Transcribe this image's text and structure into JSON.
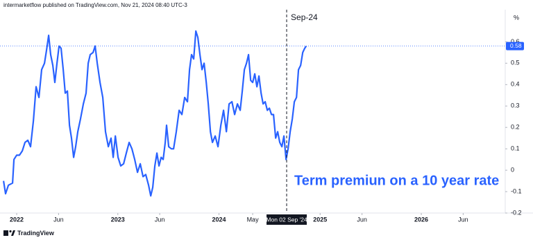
{
  "header": "intermarketflow published on TradingView.com, Nov 21, 2024 08:40 UTC-3",
  "footer": "TradingView",
  "chart_data": {
    "type": "line",
    "unit": "%",
    "annotation": "Term premiun on a 10 year rate",
    "crosshair": {
      "x": 2024.669,
      "label": "Mon 02 Sep '24",
      "tag": "Sep-24"
    },
    "xlim": [
      2021.835,
      2026.83
    ],
    "xticks": [
      2022,
      {
        "value": 2022.414,
        "label": "Jun"
      },
      2023,
      {
        "value": 2023.414,
        "label": "Jun"
      },
      2024,
      {
        "value": 2024.333,
        "label": "May"
      },
      2025,
      {
        "value": 2025.414,
        "label": "Jun"
      },
      2026,
      {
        "value": 2026.414,
        "label": "Jun"
      }
    ],
    "ylim": [
      -0.2,
      0.75
    ],
    "yticks": [
      -0.2,
      -0.1,
      0,
      0.1,
      0.2,
      0.3,
      0.4,
      0.5,
      0.6
    ],
    "x": [
      2021.87,
      2021.89,
      2021.918,
      2021.959,
      2021.973,
      2022.0,
      2022.027,
      2022.055,
      2022.082,
      2022.11,
      2022.137,
      2022.165,
      2022.192,
      2022.22,
      2022.247,
      2022.275,
      2022.295,
      2022.316,
      2022.336,
      2022.357,
      2022.377,
      2022.398,
      2022.419,
      2022.439,
      2022.46,
      2022.48,
      2022.501,
      2022.522,
      2022.542,
      2022.563,
      2022.583,
      2022.604,
      2022.631,
      2022.659,
      2022.686,
      2022.707,
      2022.727,
      2022.755,
      2022.776,
      2022.796,
      2022.824,
      2022.851,
      2022.878,
      2022.906,
      2022.933,
      2022.954,
      2022.975,
      2023.002,
      2023.029,
      2023.057,
      2023.084,
      2023.112,
      2023.139,
      2023.167,
      2023.194,
      2023.222,
      2023.249,
      2023.276,
      2023.304,
      2023.325,
      2023.345,
      2023.366,
      2023.386,
      2023.407,
      2023.428,
      2023.448,
      2023.469,
      2023.482,
      2023.503,
      2023.53,
      2023.551,
      2023.578,
      2023.606,
      2023.633,
      2023.661,
      2023.688,
      2023.709,
      2023.729,
      2023.75,
      2023.771,
      2023.791,
      2023.812,
      2023.832,
      2023.853,
      2023.874,
      2023.894,
      2023.915,
      2023.935,
      2023.963,
      2023.99,
      2024.018,
      2024.045,
      2024.073,
      2024.1,
      2024.128,
      2024.155,
      2024.182,
      2024.21,
      2024.23,
      2024.251,
      2024.272,
      2024.292,
      2024.313,
      2024.333,
      2024.354,
      2024.375,
      2024.395,
      2024.416,
      2024.436,
      2024.457,
      2024.478,
      2024.498,
      2024.519,
      2024.539,
      2024.56,
      2024.58,
      2024.601,
      2024.622,
      2024.642,
      2024.663,
      2024.683,
      2024.704,
      2024.725,
      2024.745,
      2024.766,
      2024.786,
      2024.807,
      2024.828,
      2024.848,
      2024.862
    ],
    "series": [
      {
        "color": "#2962ff",
        "values": [
          -0.05,
          -0.11,
          -0.07,
          -0.06,
          0.05,
          0.07,
          0.07,
          0.09,
          0.13,
          0.14,
          0.11,
          0.23,
          0.39,
          0.34,
          0.47,
          0.5,
          0.56,
          0.63,
          0.54,
          0.49,
          0.41,
          0.5,
          0.58,
          0.57,
          0.47,
          0.36,
          0.37,
          0.21,
          0.15,
          0.06,
          0.11,
          0.18,
          0.24,
          0.31,
          0.36,
          0.5,
          0.54,
          0.55,
          0.58,
          0.5,
          0.41,
          0.34,
          0.18,
          0.11,
          0.15,
          0.06,
          0.16,
          0.06,
          0.02,
          0.03,
          0.08,
          0.13,
          0.1,
          0.05,
          -0.01,
          0.03,
          -0.03,
          -0.02,
          -0.07,
          -0.12,
          -0.08,
          0.02,
          0.08,
          0.02,
          0.06,
          0.05,
          0.13,
          0.21,
          0.11,
          0.1,
          0.1,
          0.18,
          0.28,
          0.26,
          0.34,
          0.32,
          0.47,
          0.54,
          0.52,
          0.65,
          0.62,
          0.54,
          0.47,
          0.5,
          0.41,
          0.31,
          0.18,
          0.13,
          0.16,
          0.11,
          0.21,
          0.28,
          0.18,
          0.31,
          0.32,
          0.26,
          0.31,
          0.28,
          0.37,
          0.47,
          0.5,
          0.54,
          0.42,
          0.41,
          0.45,
          0.39,
          0.44,
          0.36,
          0.31,
          0.32,
          0.28,
          0.29,
          0.26,
          0.26,
          0.15,
          0.18,
          0.13,
          0.11,
          0.16,
          0.05,
          0.1,
          0.18,
          0.24,
          0.32,
          0.34,
          0.47,
          0.49,
          0.55,
          0.57,
          0.58
        ]
      }
    ]
  }
}
